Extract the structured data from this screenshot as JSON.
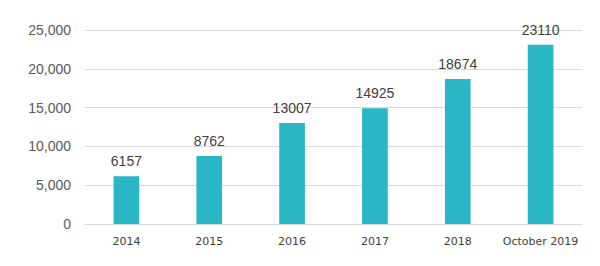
{
  "chart_data": {
    "type": "bar",
    "categories": [
      "2014",
      "2015",
      "2016",
      "2017",
      "2018",
      "October 2019"
    ],
    "values": [
      6157,
      8762,
      13007,
      14925,
      18674,
      23110
    ],
    "color": "#2ab7c5",
    "ylim": [
      0,
      25000
    ],
    "yticks": [
      0,
      5000,
      10000,
      15000,
      20000,
      25000
    ],
    "grid": true,
    "data_labels": true
  }
}
